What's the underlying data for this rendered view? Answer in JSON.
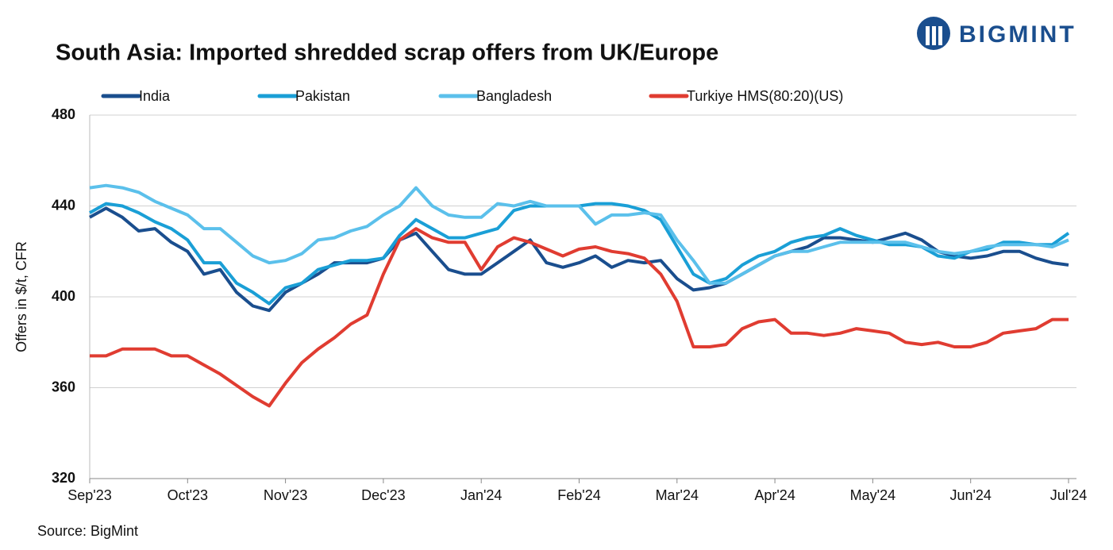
{
  "logo": "BIGMINT",
  "chart_data": {
    "type": "line",
    "title": "South Asia: Imported shredded scrap offers from UK/Europe",
    "y_label": "Offers in $/t, CFR",
    "source": "Source: BigMint",
    "categories": [
      "Sep'23",
      null,
      null,
      null,
      null,
      null,
      "Oct'23",
      null,
      null,
      null,
      null,
      null,
      "Nov'23",
      null,
      null,
      null,
      null,
      null,
      "Dec'23",
      null,
      null,
      null,
      null,
      null,
      "Jan'24",
      null,
      null,
      null,
      null,
      null,
      "Feb'24",
      null,
      null,
      null,
      null,
      null,
      "Mar'24",
      null,
      null,
      null,
      null,
      null,
      "Apr'24",
      null,
      null,
      null,
      null,
      null,
      "May'24",
      null,
      null,
      null,
      null,
      null,
      "Jun'24",
      null,
      null,
      null,
      null,
      null,
      "Jul'24"
    ],
    "ylim": [
      320,
      480
    ],
    "yticks": [
      320,
      360,
      400,
      440,
      480
    ],
    "grid": true,
    "series": [
      {
        "name": "India",
        "color": "#1a4e8e",
        "values": [
          435,
          439,
          435,
          429,
          430,
          424,
          420,
          410,
          412,
          402,
          396,
          394,
          402,
          406,
          410,
          415,
          415,
          415,
          417,
          425,
          428,
          420,
          412,
          410,
          410,
          415,
          420,
          425,
          415,
          413,
          415,
          418,
          413,
          416,
          415,
          416,
          408,
          403,
          404,
          406,
          410,
          414,
          418,
          420,
          422,
          426,
          426,
          425,
          424,
          426,
          428,
          425,
          420,
          418,
          417,
          418,
          420,
          420,
          417,
          415,
          414
        ]
      },
      {
        "name": "Pakistan",
        "color": "#1a9fd6",
        "values": [
          437,
          441,
          440,
          437,
          433,
          430,
          425,
          415,
          415,
          406,
          402,
          397,
          404,
          406,
          412,
          414,
          416,
          416,
          417,
          427,
          434,
          430,
          426,
          426,
          428,
          430,
          438,
          440,
          440,
          440,
          440,
          441,
          441,
          440,
          438,
          434,
          422,
          410,
          406,
          408,
          414,
          418,
          420,
          424,
          426,
          427,
          430,
          427,
          425,
          423,
          423,
          422,
          418,
          417,
          420,
          421,
          424,
          424,
          423,
          423,
          428
        ]
      },
      {
        "name": "Bangladesh",
        "color": "#5bc0eb",
        "values": [
          448,
          449,
          448,
          446,
          442,
          439,
          436,
          430,
          430,
          424,
          418,
          415,
          416,
          419,
          425,
          426,
          429,
          431,
          436,
          440,
          448,
          440,
          436,
          435,
          435,
          441,
          440,
          442,
          440,
          440,
          440,
          432,
          436,
          436,
          437,
          436,
          425,
          416,
          406,
          406,
          410,
          414,
          418,
          420,
          420,
          422,
          424,
          424,
          424,
          424,
          424,
          422,
          420,
          419,
          420,
          422,
          423,
          423,
          423,
          422,
          425
        ]
      },
      {
        "name": "Turkiye HMS(80:20)(US)",
        "color": "#e03c31",
        "values": [
          374,
          374,
          377,
          377,
          377,
          374,
          374,
          370,
          366,
          361,
          356,
          352,
          362,
          371,
          377,
          382,
          388,
          392,
          410,
          425,
          430,
          426,
          424,
          424,
          412,
          422,
          426,
          424,
          421,
          418,
          421,
          422,
          420,
          419,
          417,
          410,
          398,
          378,
          378,
          379,
          386,
          389,
          390,
          384,
          384,
          383,
          384,
          386,
          385,
          384,
          380,
          379,
          380,
          378,
          378,
          380,
          384,
          385,
          386,
          390,
          390
        ]
      }
    ]
  }
}
